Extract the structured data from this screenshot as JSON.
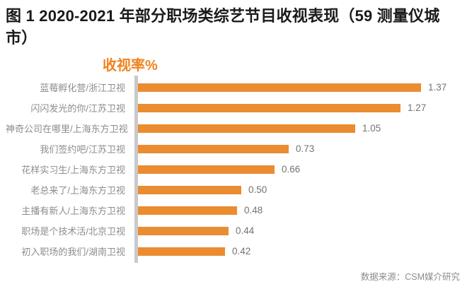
{
  "page": {
    "title": "图 1 2020-2021 年部分职场类综艺节目收视表现（59 测量仪城市）",
    "source": "数据来源：CSM媒介研究"
  },
  "chart_data": {
    "type": "bar",
    "orientation": "horizontal",
    "title": "图 1 2020-2021 年部分职场类综艺节目收视表现（59 测量仪城市）",
    "axis_title": "收视率%",
    "ylabel": "",
    "xlabel": "收视率%",
    "categories": [
      "蓝莓孵化营/浙江卫视",
      "闪闪发光的你/江苏卫视",
      "神奇公司在哪里/上海东方卫视",
      "我们签约吧/江苏卫视",
      "花样实习生/上海东方卫视",
      "老总来了/上海东方卫视",
      "主播有新人/上海东方卫视",
      "职场是个技术活/北京卫视",
      "初入职场的我们/湖南卫视"
    ],
    "values": [
      1.37,
      1.27,
      1.05,
      0.73,
      0.66,
      0.5,
      0.48,
      0.44,
      0.42
    ],
    "value_decimals": 2,
    "xlim": [
      0,
      1.45
    ],
    "grid": false,
    "legend": false,
    "data_labels": true,
    "source": "数据来源：CSM媒介研究",
    "colors": {
      "bar": "#ea8c30",
      "axis_line": "#c9c9c9",
      "category_label": "#8c8c8c",
      "value_label": "#737373",
      "axis_title": "#f0821e",
      "title_text": "#1a1a1a",
      "source_text": "#8c8c8c"
    }
  }
}
